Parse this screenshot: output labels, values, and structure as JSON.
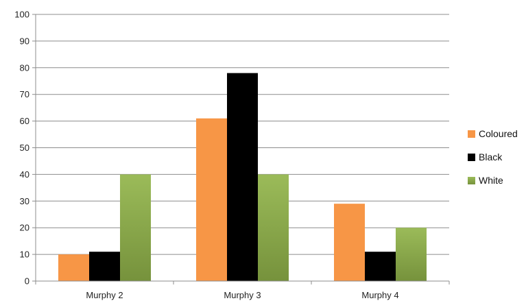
{
  "chart_data": {
    "type": "bar",
    "categories": [
      "Murphy 2",
      "Murphy 3",
      "Murphy 4"
    ],
    "series": [
      {
        "name": "Coloured",
        "values": [
          10,
          61,
          29
        ],
        "color": "#f79646"
      },
      {
        "name": "Black",
        "values": [
          11,
          78,
          11
        ],
        "color": "#000000"
      },
      {
        "name": "White",
        "values": [
          40,
          40,
          20
        ],
        "color": "#9bbb59",
        "color_dark": "#76923c"
      }
    ],
    "ylim": [
      0,
      100
    ],
    "yticks": [
      "0",
      "10",
      "20",
      "30",
      "40",
      "50",
      "60",
      "70",
      "80",
      "90",
      "100"
    ],
    "grid": true,
    "legend_position": "right"
  }
}
